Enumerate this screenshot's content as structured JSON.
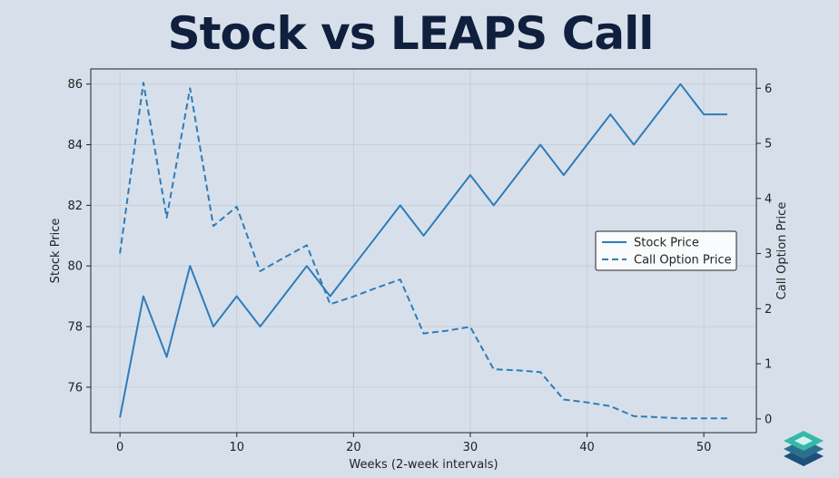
{
  "chart_data": {
    "type": "line",
    "title": "Stock vs LEAPS Call",
    "xlabel": "Weeks (2-week intervals)",
    "ylabel_left": "Stock Price",
    "ylabel_right": "Call Option Price",
    "xlim": [
      -2.5,
      54.5
    ],
    "ylim_left": [
      74.5,
      86.5
    ],
    "ylim_right": [
      -0.25,
      6.35
    ],
    "x_ticks": [
      0,
      10,
      20,
      30,
      40,
      50
    ],
    "y_ticks_left": [
      76,
      78,
      80,
      82,
      84,
      86
    ],
    "y_ticks_right": [
      0,
      1,
      2,
      3,
      4,
      5,
      6
    ],
    "grid": true,
    "legend_position": "center-right",
    "x": [
      0,
      2,
      4,
      6,
      8,
      10,
      12,
      14,
      16,
      18,
      20,
      22,
      24,
      26,
      28,
      30,
      32,
      34,
      36,
      38,
      40,
      42,
      44,
      46,
      48,
      50,
      52
    ],
    "series": [
      {
        "name": "Stock Price",
        "axis": "left",
        "style": "solid",
        "color": "#2e7cba",
        "values": [
          75,
          79,
          77,
          80,
          78,
          79,
          78,
          79,
          80,
          79,
          80,
          81,
          82,
          81,
          82,
          83,
          82,
          83,
          84,
          83,
          84,
          85,
          84,
          85,
          86,
          85,
          85
        ]
      },
      {
        "name": "Call Option Price",
        "axis": "right",
        "style": "dashed",
        "color": "#2e7cba",
        "values": [
          3.0,
          6.1,
          3.65,
          6.0,
          3.5,
          3.85,
          2.68,
          2.92,
          3.15,
          2.08,
          2.22,
          2.38,
          2.53,
          1.55,
          1.6,
          1.67,
          0.9,
          0.88,
          0.85,
          0.35,
          0.3,
          0.23,
          0.05,
          0.03,
          0.01,
          0.01,
          0.01
        ]
      }
    ]
  }
}
